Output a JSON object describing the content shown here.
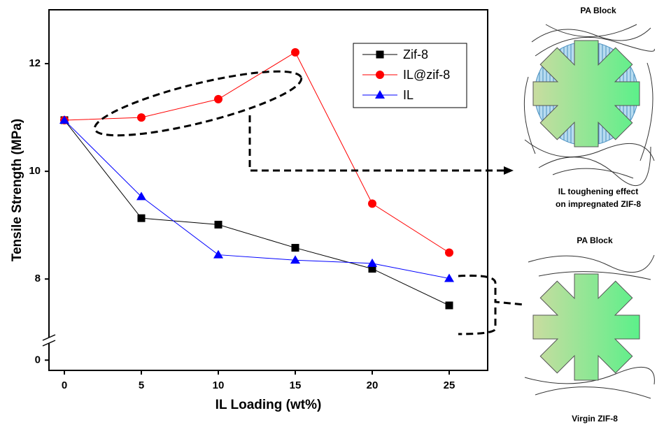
{
  "chart_data": {
    "type": "line",
    "x_label": "IL Loading (wt%)",
    "y_label": "Tensile Strength (MPa)",
    "x": [
      0,
      5,
      10,
      15,
      20,
      25
    ],
    "series": [
      {
        "name": "Zif-8",
        "color": "#000000",
        "marker": "square",
        "values": [
          10.95,
          9.13,
          9.01,
          8.58,
          8.19,
          7.51
        ]
      },
      {
        "name": "IL@zif-8",
        "color": "#ff0000",
        "marker": "circle",
        "values": [
          10.95,
          11.0,
          11.34,
          12.21,
          9.4,
          8.49
        ]
      },
      {
        "name": "IL",
        "color": "#0000ff",
        "marker": "triangle",
        "values": [
          10.95,
          9.53,
          8.45,
          8.35,
          8.29,
          8.01
        ]
      }
    ],
    "xlim": [
      -1,
      27.5
    ],
    "xticks": [
      0,
      5,
      10,
      15,
      20,
      25
    ],
    "ylim": [
      -4,
      13
    ],
    "yticks": [
      0,
      8,
      10,
      12
    ],
    "y_break": 6.9,
    "annotations": [
      "PA Block",
      "IL toughening effect",
      "on impregnated ZIF-8",
      "PA Block",
      "Virgin ZIF-8"
    ]
  }
}
